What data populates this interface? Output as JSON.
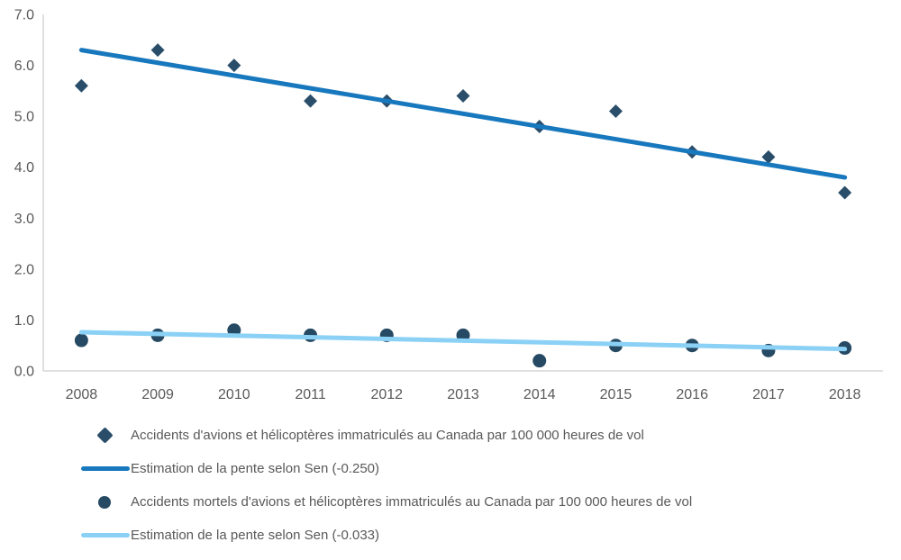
{
  "chart_data": {
    "type": "scatter",
    "title": "",
    "xlabel": "",
    "ylabel": "",
    "categories": [
      "2008",
      "2009",
      "2010",
      "2011",
      "2012",
      "2013",
      "2014",
      "2015",
      "2016",
      "2017",
      "2018"
    ],
    "ylim": [
      0,
      7
    ],
    "ytick_step": 1,
    "y_tick_labels": [
      "0.0",
      "1.0",
      "2.0",
      "3.0",
      "4.0",
      "5.0",
      "6.0",
      "7.0"
    ],
    "grid": false,
    "legend_position": "bottom-left",
    "axis_color": "#D6D6D6",
    "tick_label_color": "#595959",
    "series": [
      {
        "name": "Accidents d'avions et hélicoptères immatriculés au Canada par 100 000 heures de vol",
        "type": "scatter",
        "marker": "diamond",
        "color": "#2A4E6A",
        "values": [
          5.6,
          6.3,
          6.0,
          5.3,
          5.3,
          5.4,
          4.8,
          5.1,
          4.3,
          4.2,
          3.5
        ]
      },
      {
        "name": "Estimation de la pente selon Sen (-0.250)",
        "type": "trendline",
        "marker": "none",
        "color": "#1878BE",
        "slope_per_year": -0.25,
        "start_value": 6.3,
        "end_value": 3.8
      },
      {
        "name": "Accidents mortels d'avions et hélicoptères immatriculés au Canada par 100 000 heures de vol",
        "type": "scatter",
        "marker": "circle",
        "color": "#264A63",
        "values": [
          0.6,
          0.7,
          0.8,
          0.7,
          0.7,
          0.7,
          0.2,
          0.5,
          0.5,
          0.4,
          0.45
        ]
      },
      {
        "name": "Estimation de la pente selon Sen (-0.033)",
        "type": "trendline",
        "marker": "none",
        "color": "#8BD1F6",
        "slope_per_year": -0.033,
        "start_value": 0.76,
        "end_value": 0.43
      }
    ]
  }
}
